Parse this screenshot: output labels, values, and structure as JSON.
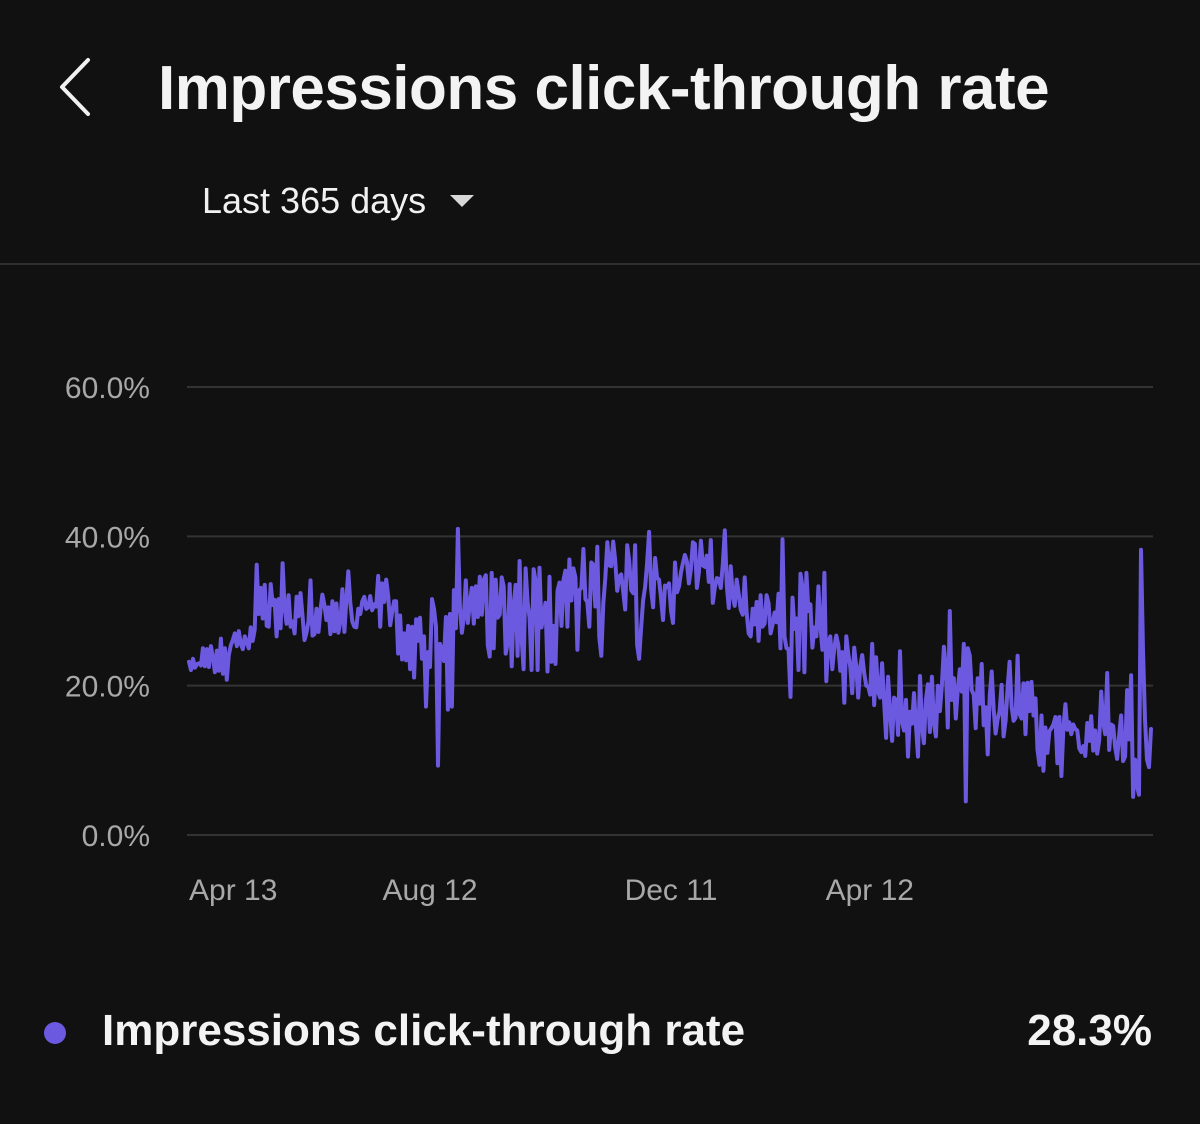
{
  "header": {
    "title": "Impressions click-through rate",
    "back_icon": "chevron-left-icon",
    "range": {
      "selected": "Last 365 days",
      "caret_icon": "caret-down-icon"
    }
  },
  "colors": {
    "background": "#111111",
    "series": "#6b5ae0",
    "grid": "#333333",
    "axis_text": "#a8a8a8"
  },
  "chart_data": {
    "type": "line",
    "title": "",
    "xlabel": "",
    "ylabel": "",
    "ylim": [
      0,
      60
    ],
    "y_ticks": [
      {
        "value": 0,
        "label": "0.0%"
      },
      {
        "value": 20,
        "label": "20.0%"
      },
      {
        "value": 40,
        "label": "40.0%"
      },
      {
        "value": 60,
        "label": "60.0%"
      }
    ],
    "x_ticks": [
      "Apr 13",
      "Aug 12",
      "Dec 11",
      "Apr 12"
    ],
    "x_tick_positions": [
      1,
      122,
      243,
      365
    ],
    "grid": true,
    "series": [
      {
        "name": "Impressions click-through rate",
        "values": [
          23.2,
          22.1,
          23.6,
          22.4,
          22.9,
          23.0,
          22.7,
          25.0,
          22.6,
          24.9,
          22.5,
          25.3,
          23.8,
          21.8,
          24.7,
          22.0,
          26.3,
          21.6,
          25.0,
          20.8,
          24.1,
          25.4,
          26.1,
          27.0,
          25.3,
          27.3,
          25.6,
          24.9,
          26.6,
          25.8,
          25.0,
          27.8,
          26.0,
          27.5,
          36.2,
          29.6,
          33.1,
          29.0,
          33.5,
          28.0,
          27.9,
          33.6,
          30.8,
          31.5,
          26.6,
          31.6,
          27.7,
          36.4,
          30.5,
          28.3,
          32.1,
          27.9,
          28.6,
          27.0,
          31.9,
          29.3,
          32.4,
          29.4,
          26.1,
          27.1,
          28.6,
          34.1,
          26.7,
          26.9,
          30.3,
          27.2,
          30.2,
          32.2,
          30.8,
          28.8,
          30.5,
          26.9,
          31.3,
          27.3,
          31.0,
          27.1,
          28.6,
          32.9,
          27.2,
          31.4,
          35.3,
          31.1,
          28.6,
          27.9,
          27.8,
          30.3,
          29.6,
          31.3,
          31.9,
          30.3,
          30.5,
          32.0,
          30.1,
          30.9,
          30.6,
          34.7,
          27.9,
          33.7,
          31.2,
          34.2,
          32.0,
          28.1,
          29.9,
          31.3,
          31.3,
          24.3,
          29.4,
          23.5,
          27.0,
          23.4,
          28.0,
          22.2,
          27.9,
          21.1,
          28.9,
          26.0,
          29.1,
          23.6,
          26.6,
          17.2,
          24.5,
          22.5,
          31.6,
          30.3,
          27.9,
          9.3,
          25.6,
          24.7,
          23.3,
          29.2,
          16.8,
          29.6,
          17.2,
          32.8,
          27.7,
          41.0,
          30.5,
          27.1,
          29.3,
          34.1,
          28.4,
          30.9,
          33.1,
          28.3,
          33.3,
          29.2,
          34.6,
          29.5,
          34.2,
          34.8,
          25.4,
          23.9,
          35.1,
          25.0,
          34.2,
          29.1,
          29.5,
          34.5,
          33.3,
          24.3,
          25.7,
          33.6,
          22.6,
          30.8,
          33.5,
          24.0,
          36.7,
          26.4,
          22.2,
          35.7,
          31.2,
          29.1,
          22.1,
          35.6,
          34.0,
          22.1,
          35.8,
          27.8,
          29.4,
          31.1,
          21.9,
          34.6,
          23.2,
          28.0,
          22.9,
          32.7,
          33.8,
          28.0,
          34.1,
          35.4,
          27.9,
          36.9,
          31.4,
          35.7,
          34.5,
          24.8,
          32.8,
          33.1,
          38.3,
          31.6,
          31.2,
          27.9,
          36.5,
          36.2,
          30.6,
          38.6,
          26.5,
          24.0,
          31.0,
          34.4,
          39.2,
          36.1,
          36.0,
          39.3,
          36.8,
          32.7,
          34.6,
          34.9,
          32.6,
          30.2,
          38.8,
          36.7,
          32.8,
          32.4,
          38.8,
          25.5,
          23.6,
          27.7,
          31.4,
          33.2,
          36.4,
          40.6,
          32.9,
          30.5,
          37.1,
          34.4,
          34.2,
          31.8,
          28.8,
          33.4,
          33.2,
          33.7,
          30.1,
          28.4,
          36.5,
          32.5,
          33.3,
          35.2,
          36.4,
          37.5,
          36.6,
          33.7,
          35.6,
          39.2,
          39.0,
          33.1,
          35.2,
          39.4,
          36.1,
          35.9,
          37.4,
          33.9,
          39.5,
          31.1,
          33.1,
          34.4,
          34.3,
          33.1,
          36.3,
          40.8,
          33.4,
          30.4,
          36.0,
          32.1,
          30.7,
          34.2,
          32.3,
          30.2,
          29.5,
          34.5,
          29.7,
          27.0,
          26.6,
          30.3,
          28.2,
          31.2,
          26.0,
          32.1,
          27.9,
          28.3,
          32.1,
          31.0,
          27.0,
          28.2,
          29.8,
          28.5,
          32.3,
          25.0,
          39.6,
          26.6,
          25.0,
          24.9,
          18.5,
          31.8,
          27.6,
          29.0,
          22.1,
          35.0,
          33.3,
          21.8,
          35.1,
          30.0,
          30.9,
          25.1,
          27.8,
          26.6,
          33.3,
          28.0,
          24.8,
          35.1,
          20.6,
          25.8,
          26.6,
          22.2,
          25.1,
          26.7,
          25.4,
          22.0,
          24.5,
          17.7,
          26.6,
          24.2,
          22.5,
          19.0,
          25.1,
          22.6,
          18.4,
          22.5,
          24.1,
          21.7,
          20.0,
          19.9,
          18.8,
          25.6,
          17.4,
          23.8,
          19.2,
          18.4,
          23.0,
          17.9,
          13.0,
          21.2,
          16.4,
          12.6,
          18.4,
          18.1,
          13.4,
          24.6,
          15.2,
          14.0,
          18.1,
          10.5,
          16.5,
          14.9,
          19.0,
          14.6,
          10.5,
          21.3,
          14.5,
          12.3,
          18.1,
          20.2,
          13.8,
          21.2,
          15.0,
          13.2,
          20.0,
          16.6,
          20.1,
          25.2,
          22.3,
          14.4,
          30.0,
          18.1,
          21.0,
          15.6,
          19.5,
          22.2,
          19.2,
          25.6,
          4.5,
          25.0,
          24.0,
          19.4,
          18.8,
          14.3,
          21.0,
          17.6,
          22.9,
          14.7,
          17.1,
          10.8,
          18.6,
          21.9,
          16.8,
          13.6,
          15.5,
          16.6,
          20.1,
          13.2,
          15.3,
          19.7,
          23.2,
          17.2,
          15.3,
          15.7,
          24.0,
          16.2,
          15.6,
          20.3,
          13.5,
          20.4,
          16.6,
          20.5,
          16.0,
          18.3,
          11.4,
          9.4,
          16.0,
          8.6,
          14.4,
          11.0,
          13.9,
          14.3,
          14.8,
          15.8,
          9.6,
          15.8,
          7.9,
          14.4,
          17.5,
          14.1,
          15.1,
          13.5,
          14.8,
          14.2,
          14.0,
          11.6,
          11.1,
          11.9,
          10.6,
          15.0,
          12.6,
          15.9,
          11.3,
          14.0,
          10.9,
          12.7,
          19.2,
          15.0,
          13.5,
          21.7,
          11.4,
          14.8,
          14.6,
          11.8,
          10.2,
          13.3,
          16.0,
          9.9,
          10.5,
          19.4,
          12.8,
          21.4,
          5.1,
          10.1,
          6.5,
          5.4,
          38.2,
          24.7,
          15.4,
          10.1,
          9.1,
          14.2
        ]
      }
    ]
  },
  "legend": {
    "label": "Impressions click-through rate",
    "value": "28.3%"
  }
}
